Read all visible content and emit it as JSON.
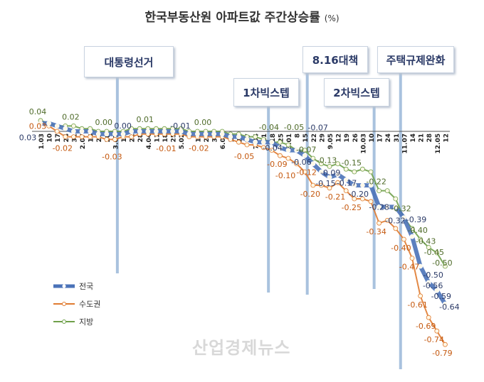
{
  "chart_data": {
    "type": "line",
    "title": "한국부동산원 아파트값 주간상승률",
    "unit": "(%)",
    "categories": [
      "1.03",
      "10",
      "17",
      "24",
      "31",
      "2.07",
      "14",
      "21",
      "28",
      "3.07",
      "14",
      "21",
      "28",
      "4.04",
      "11",
      "18",
      "25",
      "5.02",
      "9",
      "16",
      "23",
      "30",
      "6.06",
      "13",
      "20",
      "27",
      "7.04",
      "11",
      "18",
      "25",
      "8.01",
      "8",
      "15",
      "22",
      "29",
      "9.05",
      "12",
      "19",
      "26",
      "10.03",
      "10",
      "17",
      "24",
      "31",
      "11.07",
      "14",
      "21",
      "28",
      "12.05",
      "12"
    ],
    "series": [
      {
        "name": "전국",
        "color": "#4a72b8",
        "values": [
          0.03,
          0.03,
          0.02,
          0.01,
          0.0,
          0.0,
          0.0,
          -0.01,
          -0.01,
          -0.01,
          -0.01,
          0.0,
          0.0,
          0.0,
          0.0,
          0.0,
          0.0,
          0.0,
          -0.01,
          -0.01,
          -0.01,
          -0.01,
          -0.01,
          -0.02,
          -0.02,
          -0.03,
          -0.04,
          -0.04,
          -0.04,
          -0.06,
          -0.07,
          -0.07,
          -0.09,
          -0.12,
          -0.15,
          -0.17,
          -0.16,
          -0.18,
          -0.2,
          -0.2,
          -0.2,
          -0.28,
          -0.28,
          -0.28,
          -0.32,
          -0.39,
          -0.5,
          -0.56,
          -0.59,
          -0.64
        ],
        "labeled": [
          0,
          11,
          19,
          26,
          29,
          31,
          32,
          34,
          35,
          38,
          41,
          44,
          45,
          46,
          47,
          48,
          49
        ]
      },
      {
        "name": "수도권",
        "color": "#e07b30",
        "values": [
          0.03,
          0.02,
          0.0,
          -0.02,
          -0.02,
          -0.02,
          -0.02,
          -0.02,
          -0.03,
          -0.03,
          -0.02,
          -0.02,
          -0.01,
          -0.01,
          -0.01,
          -0.01,
          -0.01,
          -0.01,
          -0.02,
          -0.02,
          -0.02,
          -0.02,
          -0.02,
          -0.03,
          -0.04,
          -0.05,
          -0.05,
          -0.06,
          -0.07,
          -0.09,
          -0.1,
          -0.12,
          -0.15,
          -0.2,
          -0.2,
          -0.21,
          -0.19,
          -0.22,
          -0.25,
          -0.25,
          -0.26,
          -0.34,
          -0.33,
          -0.36,
          -0.4,
          -0.47,
          -0.61,
          -0.69,
          -0.74,
          -0.79
        ],
        "labeled": [
          0,
          3,
          9,
          14,
          19,
          25,
          29,
          30,
          31,
          33,
          35,
          38,
          41,
          44,
          45,
          46,
          47,
          48,
          49
        ]
      },
      {
        "name": "지방",
        "color": "#6fa04a",
        "values": [
          0.04,
          0.03,
          0.02,
          0.02,
          0.02,
          0.01,
          0.01,
          0.0,
          0.0,
          0.0,
          0.0,
          0.01,
          0.01,
          0.01,
          0.01,
          0.01,
          0.01,
          0.01,
          0.0,
          0.0,
          0.0,
          0.0,
          0.0,
          -0.01,
          -0.01,
          -0.02,
          -0.02,
          -0.03,
          -0.04,
          -0.04,
          -0.05,
          -0.07,
          -0.07,
          -0.1,
          -0.12,
          -0.13,
          -0.12,
          -0.14,
          -0.15,
          -0.14,
          -0.15,
          -0.22,
          -0.22,
          -0.25,
          -0.32,
          -0.36,
          -0.4,
          -0.43,
          -0.45,
          -0.5
        ],
        "labeled": [
          0,
          4,
          8,
          13,
          20,
          28,
          30,
          32,
          35,
          38,
          41,
          44,
          46,
          47,
          48,
          49
        ]
      }
    ],
    "events": [
      {
        "label": "대통령선거",
        "x": 9.3
      },
      {
        "label": "1차빅스텝",
        "x": 27.6
      },
      {
        "label": "8.16대책",
        "x": 32.3
      },
      {
        "label": "2차빅스텝",
        "x": 40.4
      },
      {
        "label": "주택규제완화",
        "x": 43.6
      }
    ],
    "legend_position": "left-bottom",
    "grid": false
  },
  "watermark": "산업경제뉴스"
}
